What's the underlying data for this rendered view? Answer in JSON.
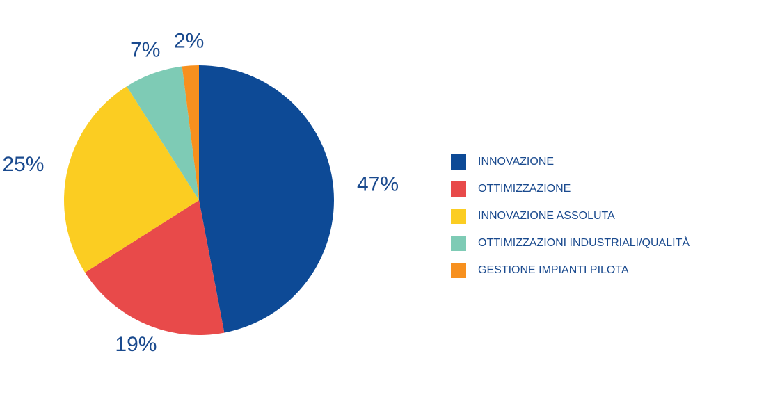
{
  "chart_data": {
    "type": "pie",
    "categories": [
      "INNOVAZIONE",
      "OTTIMIZZAZIONE",
      "INNOVAZIONE ASSOLUTA",
      "OTTIMIZZAZIONI INDUSTRIALI/QUALITÀ",
      "GESTIONE IMPIANTI PILOTA"
    ],
    "values": [
      47,
      19,
      25,
      7,
      2
    ],
    "value_labels": [
      "47%",
      "19%",
      "25%",
      "7%",
      "2%"
    ],
    "colors": [
      "#0d4a96",
      "#e84a4a",
      "#fbcd22",
      "#7ecbb5",
      "#f7901e"
    ],
    "legend": "right"
  }
}
